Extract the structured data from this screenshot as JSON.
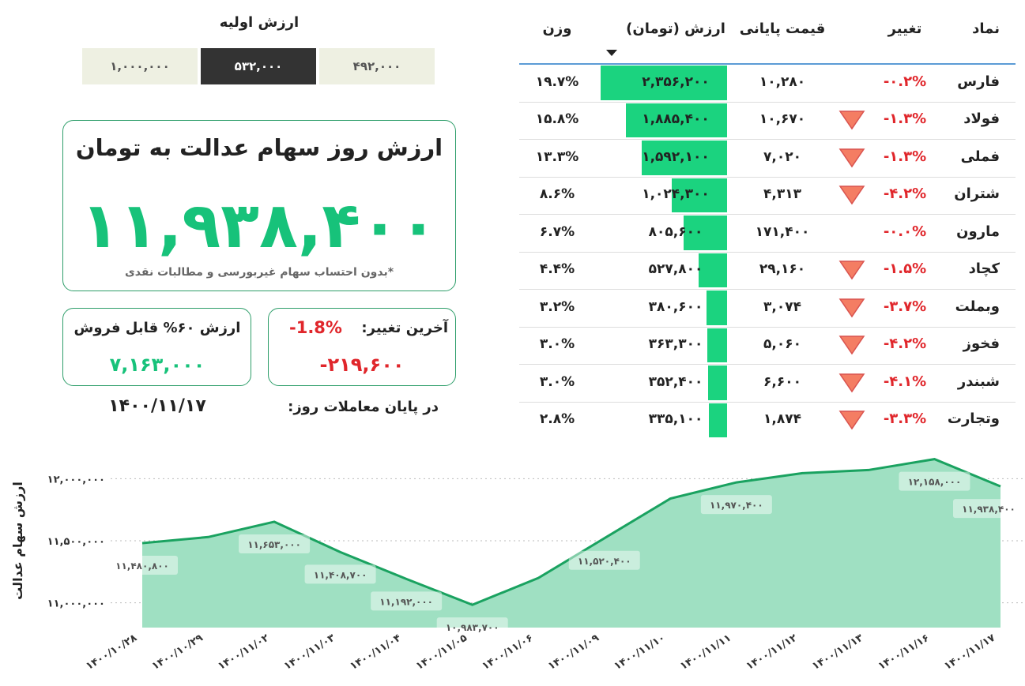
{
  "initial_value": {
    "title": "ارزش اولیه",
    "options": [
      "۱,۰۰۰,۰۰۰",
      "۵۳۲,۰۰۰",
      "۴۹۲,۰۰۰"
    ],
    "selected": 1
  },
  "summary": {
    "title": "ارزش روز سهام عدالت به تومان",
    "value": "۱۱,۹۳۸,۴۰۰",
    "note": "*بدون احتساب سهام غیربورسی و مطالبات نقدی"
  },
  "sellable": {
    "label": "ارزش ۶۰% قابل فروش",
    "value": "۷,۱۶۳,۰۰۰"
  },
  "last_change": {
    "label": "آخرین تغییر:",
    "percent": "-1.8%",
    "amount": "-۲۱۹,۶۰۰"
  },
  "date": {
    "label": "در پایان معاملات روز:",
    "value": "۱۴۰۰/۱۱/۱۷"
  },
  "table": {
    "columns": [
      "نماد",
      "تغییر",
      "قیمت پایانی",
      "ارزش (تومان)",
      "وزن"
    ],
    "sort_column": 3,
    "rows": [
      {
        "symbol": "فارس",
        "change": "-۰.۲%",
        "arrow": false,
        "price": "۱۰,۲۸۰",
        "value": {
          "value": 2356200,
          "label": "۲,۳۵۶,۲۰۰"
        },
        "weight": "۱۹.۷%"
      },
      {
        "symbol": "فولاد",
        "change": "-۱.۳%",
        "arrow": true,
        "price": "۱۰,۶۷۰",
        "value": {
          "value": 1885400,
          "label": "۱,۸۸۵,۴۰۰"
        },
        "weight": "۱۵.۸%"
      },
      {
        "symbol": "فملی",
        "change": "-۱.۳%",
        "arrow": true,
        "price": "۷,۰۲۰",
        "value": {
          "value": 1592100,
          "label": "۱,۵۹۲,۱۰۰"
        },
        "weight": "۱۳.۳%"
      },
      {
        "symbol": "شتران",
        "change": "-۴.۲%",
        "arrow": true,
        "price": "۴,۳۱۳",
        "value": {
          "value": 1024300,
          "label": "۱,۰۲۴,۳۰۰"
        },
        "weight": "۸.۶%"
      },
      {
        "symbol": "مارون",
        "change": "-۰.۰%",
        "arrow": false,
        "price": "۱۷۱,۴۰۰",
        "value": {
          "value": 805600,
          "label": "۸۰۵,۶۰۰"
        },
        "weight": "۶.۷%"
      },
      {
        "symbol": "کچاد",
        "change": "-۱.۵%",
        "arrow": true,
        "price": "۲۹,۱۶۰",
        "value": {
          "value": 527800,
          "label": "۵۲۷,۸۰۰"
        },
        "weight": "۴.۴%"
      },
      {
        "symbol": "وبملت",
        "change": "-۳.۷%",
        "arrow": true,
        "price": "۳,۰۷۴",
        "value": {
          "value": 380600,
          "label": "۳۸۰,۶۰۰"
        },
        "weight": "۳.۲%"
      },
      {
        "symbol": "فخوز",
        "change": "-۴.۲%",
        "arrow": true,
        "price": "۵,۰۶۰",
        "value": {
          "value": 363300,
          "label": "۳۶۳,۳۰۰"
        },
        "weight": "۳.۰%"
      },
      {
        "symbol": "شبندر",
        "change": "-۴.۱%",
        "arrow": true,
        "price": "۶,۶۰۰",
        "value": {
          "value": 352400,
          "label": "۳۵۲,۴۰۰"
        },
        "weight": "۳.۰%"
      },
      {
        "symbol": "وتجارت",
        "change": "-۳.۳%",
        "arrow": true,
        "price": "۱,۸۷۴",
        "value": {
          "value": 335100,
          "label": "۳۳۵,۱۰۰"
        },
        "weight": "۲.۸%"
      }
    ]
  },
  "chart_data": {
    "type": "area",
    "y_label": "ارزش سهام عدالت",
    "color": "#1aa260",
    "fill": "#9fe0c2",
    "categories": [
      "۱۴۰۰/۱۰/۲۸",
      "۱۴۰۰/۱۰/۲۹",
      "۱۴۰۰/۱۱/۰۲",
      "۱۴۰۰/۱۱/۰۳",
      "۱۴۰۰/۱۱/۰۴",
      "۱۴۰۰/۱۱/۰۵",
      "۱۴۰۰/۱۱/۰۶",
      "۱۴۰۰/۱۱/۰۹",
      "۱۴۰۰/۱۱/۱۰",
      "۱۴۰۰/۱۱/۱۱",
      "۱۴۰۰/۱۱/۱۲",
      "۱۴۰۰/۱۱/۱۳",
      "۱۴۰۰/۱۱/۱۶",
      "۱۴۰۰/۱۱/۱۷"
    ],
    "values": [
      11480800,
      11530000,
      11653000,
      11408700,
      11192000,
      10983700,
      11200000,
      11520400,
      11840000,
      11970400,
      12045000,
      12070000,
      12158000,
      11938400
    ],
    "value_labels": [
      "۱۱,۴۸۰,۸۰۰",
      null,
      "۱۱,۶۵۳,۰۰۰",
      "۱۱,۴۰۸,۷۰۰",
      "۱۱,۱۹۲,۰۰۰",
      "۱۰,۹۸۳,۷۰۰",
      null,
      "۱۱,۵۲۰,۴۰۰",
      null,
      "۱۱,۹۷۰,۴۰۰",
      null,
      null,
      "۱۲,۱۵۸,۰۰۰",
      "۱۱,۹۳۸,۴۰۰"
    ],
    "ylim": [
      10800000,
      12200000
    ],
    "yticks": [
      {
        "value": 11000000,
        "label": "۱۱,۰۰۰,۰۰۰"
      },
      {
        "value": 11500000,
        "label": "۱۱,۵۰۰,۰۰۰"
      },
      {
        "value": 12000000,
        "label": "۱۲,۰۰۰,۰۰۰"
      }
    ],
    "grid": true
  }
}
